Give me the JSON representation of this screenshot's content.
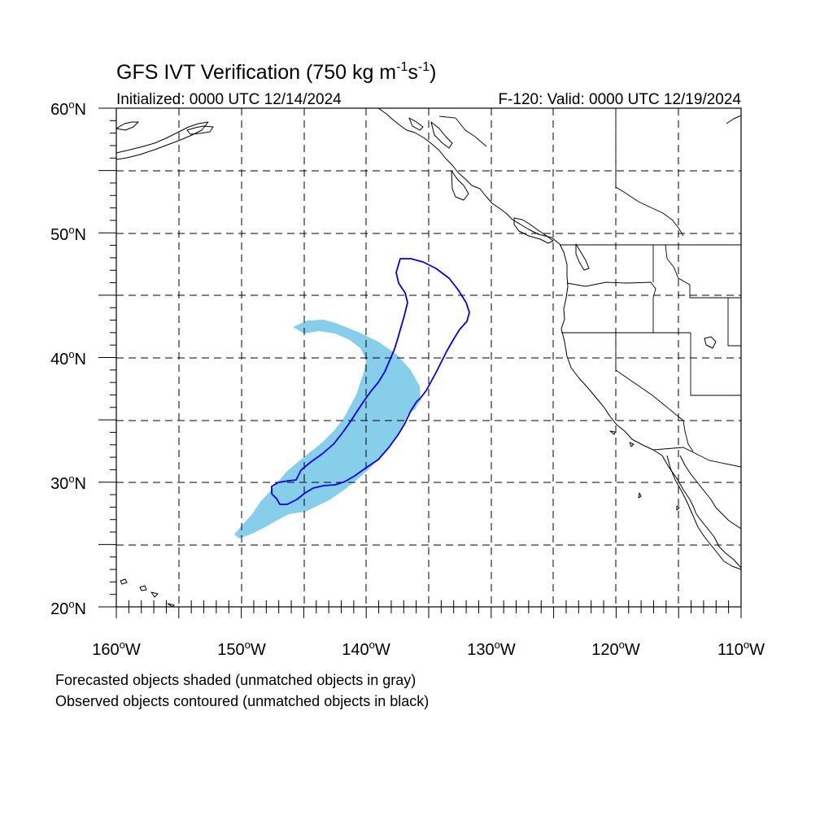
{
  "title": "GFS IVT Verification (750 kg m",
  "title_sup1": "-1",
  "title_mid": "s",
  "title_sup2": "-1",
  "title_end": ")",
  "initialized": "Initialized: 0000 UTC 12/14/2024",
  "valid": "F-120: Valid: 0000 UTC 12/19/2024",
  "lat_labels": [
    "60",
    "50",
    "40",
    "30",
    "20"
  ],
  "lat_suffix": "N",
  "lon_labels": [
    "160",
    "150",
    "140",
    "130",
    "120",
    "110"
  ],
  "lon_suffix": "W",
  "degree_symbol": "o",
  "footnote_1": "Forecasted objects shaded (unmatched objects in gray)",
  "footnote_2": "Observed objects contoured (unmatched objects in black)",
  "colors": {
    "forecast_fill": "#87ceeb",
    "observed_contour": "#0000ee",
    "coastline": "#000000"
  }
}
